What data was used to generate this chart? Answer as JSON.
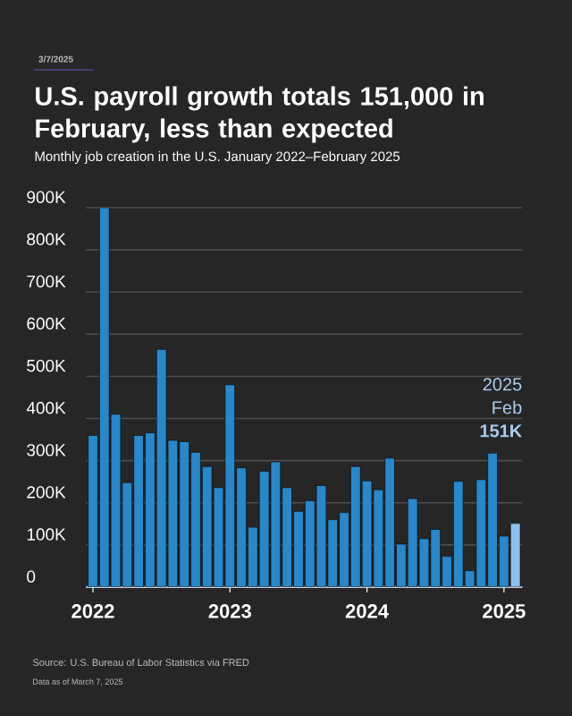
{
  "chart_data": {
    "type": "bar",
    "title": "U.S. payroll growth totals 151,000 in February, less than expected",
    "subtitle": "Monthly job creation in the U.S. January 2022–February 2025",
    "categories": [
      "2022",
      null,
      null,
      null,
      null,
      null,
      null,
      null,
      null,
      null,
      null,
      null,
      "2023",
      null,
      null,
      null,
      null,
      null,
      null,
      null,
      null,
      null,
      null,
      null,
      "2024",
      null,
      null,
      null,
      null,
      null,
      null,
      null,
      null,
      null,
      null,
      null,
      "2025",
      null
    ],
    "values": [
      360,
      900,
      410,
      248,
      360,
      366,
      564,
      348,
      345,
      320,
      286,
      236,
      480,
      283,
      142,
      275,
      297,
      236,
      180,
      205,
      241,
      160,
      177,
      286,
      252,
      231,
      306,
      102,
      210,
      115,
      137,
      73,
      251,
      39,
      255,
      318,
      121,
      151
    ],
    "colors": [
      "#2a87c8",
      "#2a87c8",
      "#2a87c8",
      "#2a87c8",
      "#2a87c8",
      "#2a87c8",
      "#2a87c8",
      "#2a87c8",
      "#2a87c8",
      "#2a87c8",
      "#2a87c8",
      "#2a87c8",
      "#2a87c8",
      "#2a87c8",
      "#2a87c8",
      "#2a87c8",
      "#2a87c8",
      "#2a87c8",
      "#2a87c8",
      "#2a87c8",
      "#2a87c8",
      "#2a87c8",
      "#2a87c8",
      "#2a87c8",
      "#2a87c8",
      "#2a87c8",
      "#2a87c8",
      "#2a87c8",
      "#2a87c8",
      "#2a87c8",
      "#2a87c8",
      "#2a87c8",
      "#2a87c8",
      "#2a87c8",
      "#2a87c8",
      "#2a87c8",
      "#2a87c8",
      "#8ec0ef"
    ],
    "ylim": [
      0,
      900
    ],
    "yticks": [
      0,
      {
        "value": 100,
        "label": "100K"
      },
      {
        "value": 200,
        "label": "200K"
      },
      {
        "value": 300,
        "label": "300K"
      },
      {
        "value": 400,
        "label": "400K"
      },
      {
        "value": 500,
        "label": "500K"
      },
      {
        "value": 600,
        "label": "600K"
      },
      {
        "value": 700,
        "label": "700K"
      },
      {
        "value": 800,
        "label": "800K"
      },
      {
        "value": 900,
        "label": "900K"
      }
    ],
    "grid": "y",
    "annotations": [
      "3/7/2025",
      "Source: U.S. Bureau of Labor Statistics via FRED",
      "Data as of March 7, 2025",
      "2025 Feb **151K**"
    ]
  }
}
